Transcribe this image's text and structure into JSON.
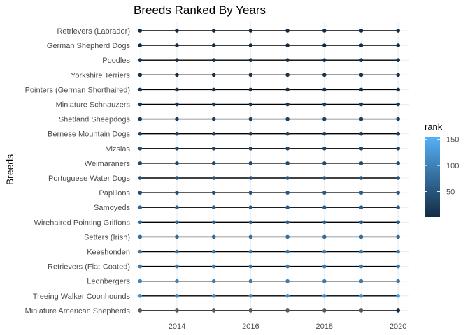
{
  "chart_data": {
    "type": "scatter",
    "title": "Breeds Ranked By Years",
    "xlabel": "",
    "ylabel": "Breeds",
    "x": [
      2013,
      2014,
      2015,
      2016,
      2017,
      2018,
      2019,
      2020
    ],
    "xlim": [
      2012.9,
      2020.3
    ],
    "x_ticks": [
      2014,
      2016,
      2018,
      2020
    ],
    "grid": true,
    "legend": {
      "title": "rank",
      "position": "right",
      "range": [
        1,
        155
      ],
      "ticks": [
        50,
        100,
        150
      ],
      "color_low": "#132b43",
      "color_high": "#56b1f7"
    },
    "series": [
      {
        "name": "Retrievers (Labrador)",
        "ranks": [
          1,
          1,
          1,
          1,
          1,
          1,
          1,
          1
        ]
      },
      {
        "name": "German Shepherd Dogs",
        "ranks": [
          2,
          2,
          2,
          2,
          2,
          2,
          2,
          3
        ]
      },
      {
        "name": "Poodles",
        "ranks": [
          8,
          7,
          8,
          7,
          7,
          7,
          7,
          6
        ]
      },
      {
        "name": "Yorkshire Terriers",
        "ranks": [
          6,
          6,
          7,
          9,
          9,
          9,
          10,
          10
        ]
      },
      {
        "name": "Pointers (German Shorthaired)",
        "ranks": [
          13,
          12,
          11,
          11,
          9,
          9,
          9,
          8
        ]
      },
      {
        "name": "Miniature Schnauzers",
        "ranks": [
          12,
          15,
          17,
          17,
          17,
          19,
          18,
          19
        ]
      },
      {
        "name": "Shetland Sheepdogs",
        "ranks": [
          19,
          19,
          23,
          24,
          24,
          25,
          24,
          24
        ]
      },
      {
        "name": "Bernese Mountain Dogs",
        "ranks": [
          32,
          32,
          29,
          26,
          25,
          22,
          22,
          22
        ]
      },
      {
        "name": "Vizslas",
        "ranks": [
          41,
          36,
          32,
          33,
          31,
          31,
          33,
          33
        ]
      },
      {
        "name": "Weimaraners",
        "ranks": [
          32,
          34,
          34,
          34,
          34,
          36,
          38,
          37
        ]
      },
      {
        "name": "Portuguese Water Dogs",
        "ranks": [
          49,
          51,
          50,
          49,
          51,
          51,
          52,
          52
        ]
      },
      {
        "name": "Papillons",
        "ranks": [
          40,
          43,
          47,
          48,
          53,
          54,
          57,
          56
        ]
      },
      {
        "name": "Samoyeds",
        "ranks": [
          66,
          63,
          60,
          59,
          60,
          59,
          59,
          59
        ]
      },
      {
        "name": "Wirehaired Pointing Griffons",
        "ranks": [
          74,
          72,
          68,
          67,
          63,
          60,
          58,
          58
        ]
      },
      {
        "name": "Setters (Irish)",
        "ranks": [
          76,
          75,
          76,
          77,
          77,
          75,
          77,
          76
        ]
      },
      {
        "name": "Keeshonden",
        "ranks": [
          88,
          88,
          87,
          89,
          90,
          93,
          95,
          97
        ]
      },
      {
        "name": "Retrievers (Flat-Coated)",
        "ranks": [
          91,
          89,
          89,
          90,
          92,
          91,
          93,
          93
        ]
      },
      {
        "name": "Leonbergers",
        "ranks": [
          105,
          101,
          98,
          94,
          94,
          92,
          92,
          91
        ]
      },
      {
        "name": "Treeing Walker Coonhounds",
        "ranks": [
          112,
          110,
          112,
          113,
          113,
          115,
          115,
          135
        ]
      },
      {
        "name": "Miniature American Shepherds",
        "ranks": [
          null,
          null,
          null,
          null,
          null,
          null,
          null,
          1
        ]
      }
    ]
  }
}
